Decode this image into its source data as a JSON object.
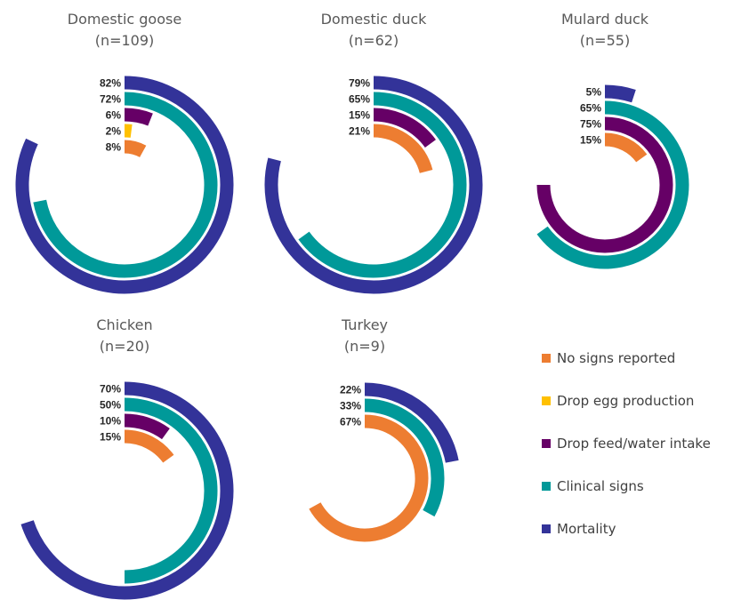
{
  "chart_data": {
    "type": "radial_bar",
    "series": [
      {
        "key": "no_signs",
        "name": "No signs reported",
        "color": "#ED7D31"
      },
      {
        "key": "drop_egg",
        "name": "Drop egg production",
        "color": "#FFC000"
      },
      {
        "key": "drop_feed",
        "name": "Drop feed/water intake",
        "color": "#660066"
      },
      {
        "key": "clinical",
        "name": "Clinical signs",
        "color": "#009999"
      },
      {
        "key": "mortality",
        "name": "Mortality",
        "color": "#333399"
      }
    ],
    "panels": [
      {
        "title": "Domestic goose",
        "n_label": "(n=109)",
        "bars": [
          {
            "series": "mortality",
            "value": 82,
            "label": "82%"
          },
          {
            "series": "clinical",
            "value": 72,
            "label": "72%"
          },
          {
            "series": "drop_feed",
            "value": 6,
            "label": "6%"
          },
          {
            "series": "drop_egg",
            "value": 2,
            "label": "2%"
          },
          {
            "series": "no_signs",
            "value": 8,
            "label": "8%"
          }
        ]
      },
      {
        "title": "Domestic duck",
        "n_label": "(n=62)",
        "bars": [
          {
            "series": "mortality",
            "value": 79,
            "label": "79%"
          },
          {
            "series": "clinical",
            "value": 65,
            "label": "65%"
          },
          {
            "series": "drop_feed",
            "value": 15,
            "label": "15%"
          },
          {
            "series": "no_signs",
            "value": 21,
            "label": "21%"
          }
        ]
      },
      {
        "title": "Mulard duck",
        "n_label": "(n=55)",
        "bars": [
          {
            "series": "mortality",
            "value": 5,
            "label": "5%"
          },
          {
            "series": "clinical",
            "value": 65,
            "label": "65%"
          },
          {
            "series": "drop_feed",
            "value": 75,
            "label": "75%"
          },
          {
            "series": "no_signs",
            "value": 15,
            "label": "15%"
          }
        ]
      },
      {
        "title": "Chicken",
        "n_label": "(n=20)",
        "bars": [
          {
            "series": "mortality",
            "value": 70,
            "label": "70%"
          },
          {
            "series": "clinical",
            "value": 50,
            "label": "50%"
          },
          {
            "series": "drop_feed",
            "value": 10,
            "label": "10%"
          },
          {
            "series": "no_signs",
            "value": 15,
            "label": "15%"
          }
        ]
      },
      {
        "title": "Turkey",
        "n_label": "(n=9)",
        "bars": [
          {
            "series": "mortality",
            "value": 22,
            "label": "22%"
          },
          {
            "series": "clinical",
            "value": 33,
            "label": "33%"
          },
          {
            "series": "no_signs",
            "value": 67,
            "label": "67%"
          }
        ]
      }
    ],
    "value_range": [
      0,
      100
    ],
    "legend_position": "right"
  }
}
